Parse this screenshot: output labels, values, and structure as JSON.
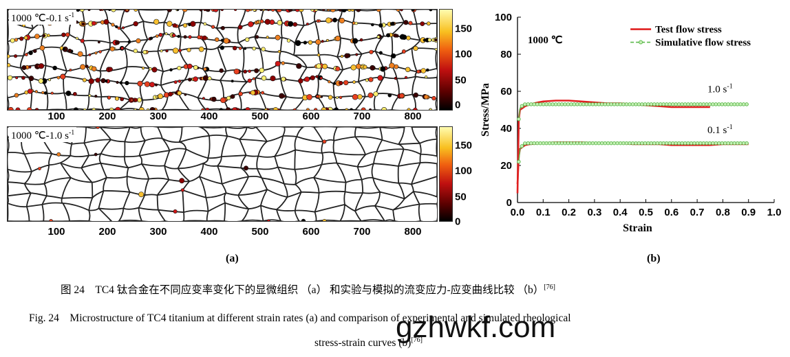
{
  "panel_a": {
    "maps": [
      {
        "title": "1000 ℃-0.1 s",
        "title_sup": "-1",
        "density": "high"
      },
      {
        "title": "1000 ℃-1.0 s",
        "title_sup": "-1",
        "density": "low"
      }
    ],
    "x_ticks": [
      "100",
      "200",
      "300",
      "400",
      "500",
      "600",
      "700",
      "800"
    ],
    "colorbar_ticks": [
      "150",
      "100",
      "50",
      "0"
    ],
    "label": "(a)"
  },
  "panel_b": {
    "label": "(b)"
  },
  "chart_data": {
    "type": "line",
    "xlabel": "Strain",
    "ylabel": "Stress/MPa",
    "xlim": [
      0,
      1.0
    ],
    "ylim": [
      0,
      100
    ],
    "x_ticks": [
      "0.0",
      "0.1",
      "0.2",
      "0.3",
      "0.4",
      "0.5",
      "0.6",
      "0.7",
      "0.8",
      "0.9",
      "1.0"
    ],
    "y_ticks": [
      "0",
      "20",
      "40",
      "60",
      "80",
      "100"
    ],
    "annotation": "1000 ℃",
    "curve_labels": [
      {
        "text": "1.0 s",
        "sup": "-1"
      },
      {
        "text": "0.1 s",
        "sup": "-1"
      }
    ],
    "legend": {
      "placement": "top-right",
      "entries": [
        "Test flow stress",
        "Simulative flow stress"
      ]
    },
    "series": [
      {
        "name": "Test flow stress",
        "rate": "1.0 s-1",
        "color": "#e02020",
        "x": [
          0.0,
          0.005,
          0.01,
          0.02,
          0.03,
          0.05,
          0.08,
          0.1,
          0.15,
          0.2,
          0.25,
          0.3,
          0.35,
          0.4,
          0.45,
          0.5,
          0.55,
          0.6,
          0.65,
          0.7,
          0.75
        ],
        "y": [
          5,
          45,
          50,
          51,
          52,
          53,
          54,
          54.5,
          55,
          55,
          54.5,
          54,
          53.5,
          53.5,
          53,
          52.5,
          52,
          51.5,
          51.5,
          51.5,
          51.5
        ]
      },
      {
        "name": "Test flow stress",
        "rate": "0.1 s-1",
        "color": "#e02020",
        "x": [
          0.0,
          0.005,
          0.01,
          0.02,
          0.03,
          0.05,
          0.1,
          0.15,
          0.2,
          0.25,
          0.3,
          0.35,
          0.4,
          0.45,
          0.5,
          0.55,
          0.6,
          0.65,
          0.7,
          0.75,
          0.8,
          0.85,
          0.9
        ],
        "y": [
          10,
          25,
          29,
          30,
          31,
          31.5,
          32,
          32.5,
          32.5,
          32.5,
          32,
          32,
          32,
          31.5,
          31.5,
          31.5,
          31,
          31,
          31,
          31,
          31.5,
          31.5,
          31.5
        ]
      },
      {
        "name": "Simulative flow stress",
        "rate": "1.0 s-1",
        "color": "#5ab84a",
        "x": [
          0.005,
          0.01,
          0.02,
          0.03,
          0.05,
          0.1,
          0.2,
          0.3,
          0.4,
          0.5,
          0.6,
          0.7,
          0.8,
          0.9
        ],
        "y": [
          45,
          51,
          52.5,
          53,
          53,
          53,
          53,
          53,
          53,
          53,
          53,
          53,
          53,
          53
        ]
      },
      {
        "name": "Simulative flow stress",
        "rate": "0.1 s-1",
        "color": "#5ab84a",
        "x": [
          0.005,
          0.01,
          0.02,
          0.03,
          0.05,
          0.1,
          0.2,
          0.3,
          0.4,
          0.5,
          0.6,
          0.7,
          0.8,
          0.9
        ],
        "y": [
          22,
          29,
          31,
          32,
          32,
          32,
          32,
          32,
          32,
          32,
          32,
          32,
          32,
          32
        ]
      }
    ]
  },
  "caption": {
    "cn": "图 24　TC4 钛合金在不同应变率变化下的显微组织 （a） 和实验与模拟的流变应力-应变曲线比较 （b）",
    "cn_ref": "[76]",
    "en_line1": "Fig. 24　Microstructure of TC4 titanium at different strain rates (a) and comparison of experimental and simulated rheological",
    "en_line2": "stress-strain curves (b)",
    "en_ref": "[76]"
  },
  "watermark": "gzhwkf.com",
  "colors": {
    "test": "#e02020",
    "sim": "#5ab84a",
    "sim_fill": "#c8f0b8"
  }
}
